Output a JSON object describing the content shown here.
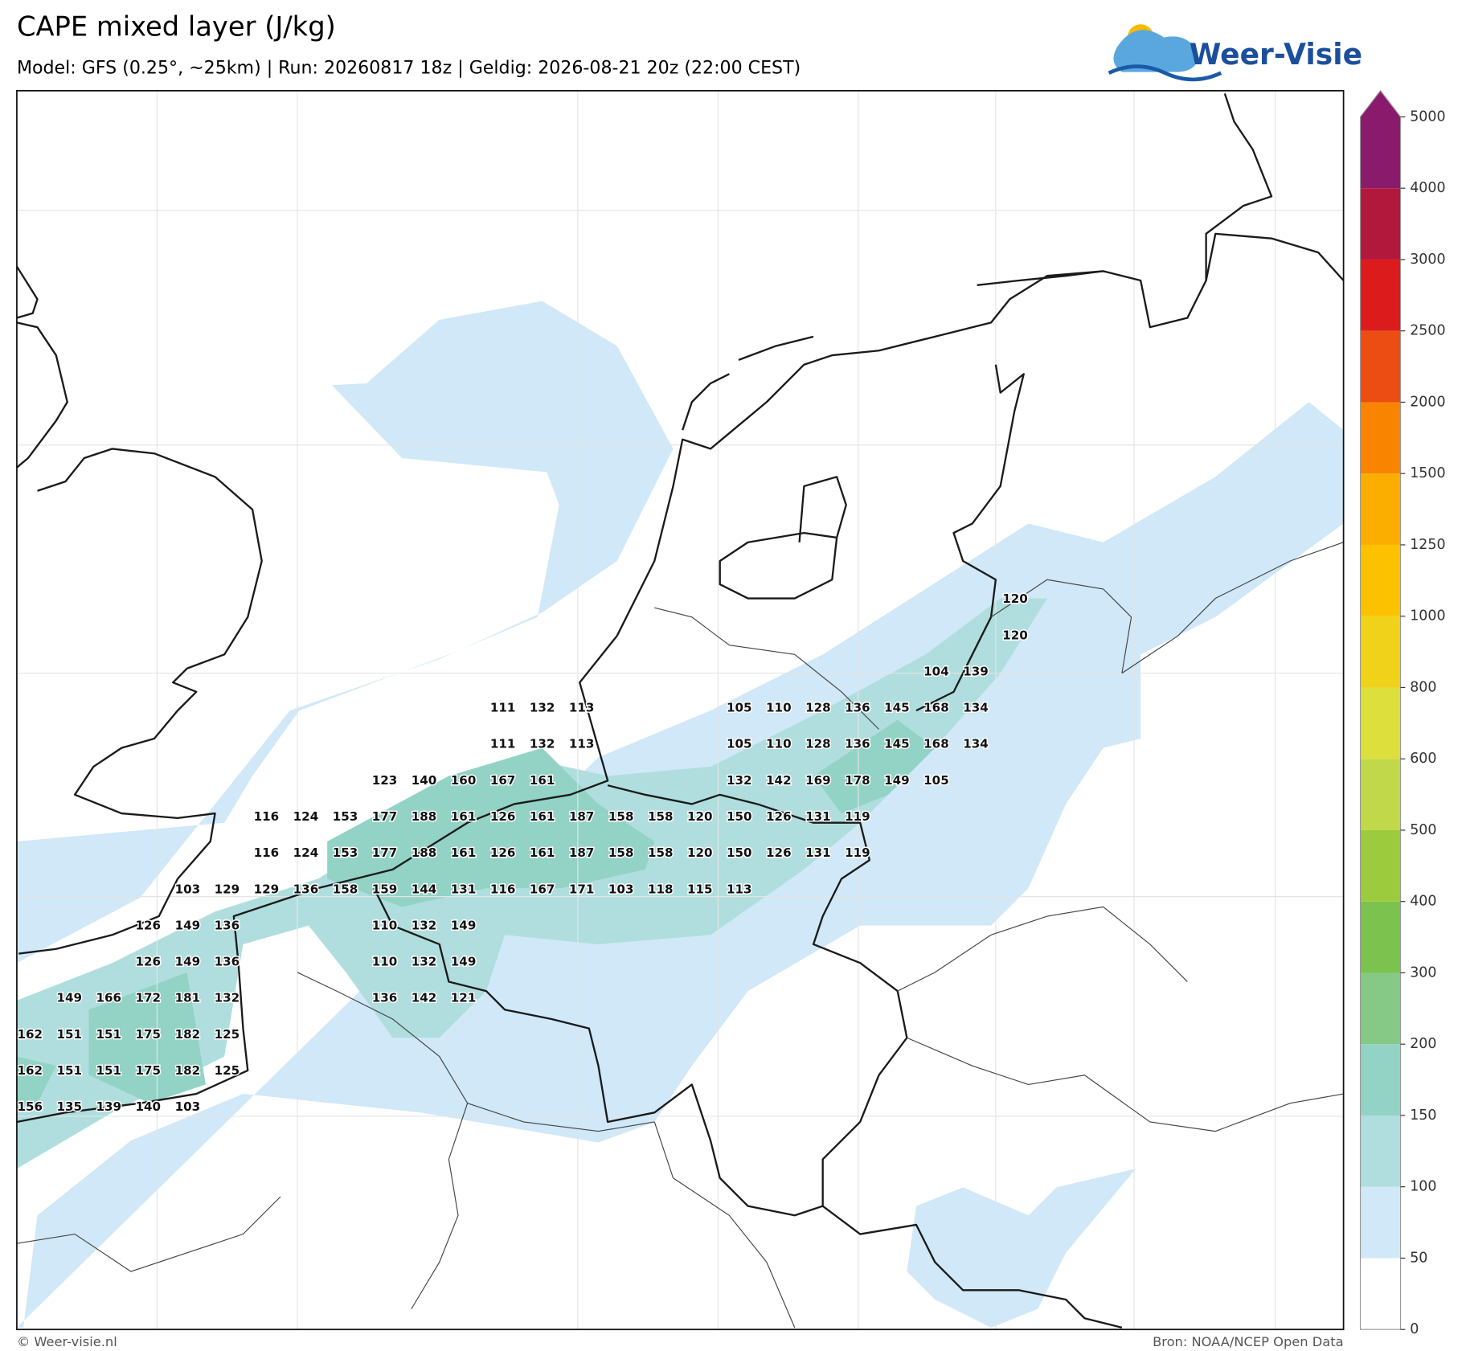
{
  "header": {
    "title": "CAPE mixed layer (J/kg)",
    "subtitle": "Model: GFS (0.25°, ~25km)  |  Run: 20260817 18z  |  Geldig: 2026-08-21 20z (22:00 CEST)",
    "logo": "Weer-Visie"
  },
  "map": {
    "labels": [
      [
        null,
        null,
        null,
        null,
        null,
        null,
        null,
        null,
        null,
        null,
        null,
        null,
        null,
        null,
        null,
        null,
        null,
        null,
        null,
        null,
        null,
        null,
        null,
        null,
        null,
        120
      ],
      [
        null,
        null,
        null,
        null,
        null,
        null,
        null,
        null,
        null,
        null,
        null,
        null,
        null,
        null,
        null,
        null,
        null,
        null,
        null,
        null,
        null,
        null,
        null,
        null,
        null,
        120
      ],
      [
        null,
        null,
        null,
        null,
        null,
        null,
        null,
        null,
        null,
        null,
        null,
        null,
        null,
        null,
        null,
        null,
        null,
        null,
        null,
        null,
        null,
        null,
        null,
        104,
        139,
        null
      ],
      [
        null,
        null,
        null,
        null,
        null,
        null,
        null,
        null,
        null,
        null,
        null,
        null,
        111,
        132,
        113,
        null,
        null,
        null,
        105,
        110,
        128,
        136,
        145,
        168,
        134,
        null
      ],
      [
        null,
        null,
        null,
        null,
        null,
        null,
        null,
        null,
        null,
        null,
        null,
        null,
        111,
        132,
        113,
        null,
        null,
        null,
        105,
        110,
        128,
        136,
        145,
        168,
        134,
        null
      ],
      [
        null,
        null,
        null,
        null,
        null,
        null,
        null,
        null,
        null,
        123,
        140,
        160,
        167,
        161,
        null,
        null,
        null,
        null,
        132,
        142,
        169,
        178,
        149,
        105,
        null,
        null
      ],
      [
        null,
        null,
        null,
        null,
        null,
        null,
        116,
        124,
        153,
        177,
        188,
        161,
        126,
        161,
        187,
        158,
        158,
        120,
        150,
        126,
        131,
        119,
        null,
        null,
        null,
        null
      ],
      [
        null,
        null,
        null,
        null,
        null,
        null,
        116,
        124,
        153,
        177,
        188,
        161,
        126,
        161,
        187,
        158,
        158,
        120,
        150,
        126,
        131,
        119,
        null,
        null,
        null,
        null
      ],
      [
        null,
        null,
        null,
        null,
        103,
        129,
        129,
        136,
        158,
        159,
        144,
        131,
        116,
        167,
        171,
        103,
        118,
        115,
        113,
        null,
        null,
        null,
        null,
        null,
        null,
        null
      ],
      [
        null,
        null,
        null,
        126,
        149,
        136,
        null,
        null,
        null,
        110,
        132,
        149,
        null,
        null,
        null,
        null,
        null,
        null,
        null,
        null,
        null,
        null,
        null,
        null,
        null,
        null
      ],
      [
        null,
        null,
        null,
        126,
        149,
        136,
        null,
        null,
        null,
        110,
        132,
        149,
        null,
        null,
        null,
        null,
        null,
        null,
        null,
        null,
        null,
        null,
        null,
        null,
        null,
        null
      ],
      [
        null,
        149,
        166,
        172,
        181,
        132,
        null,
        null,
        null,
        136,
        142,
        121,
        null,
        null,
        null,
        null,
        null,
        null,
        null,
        null,
        null,
        null,
        null,
        null,
        null,
        null
      ],
      [
        162,
        151,
        151,
        175,
        182,
        125,
        null,
        null,
        null,
        null,
        null,
        null,
        null,
        null,
        null,
        null,
        null,
        null,
        null,
        null,
        null,
        null,
        null,
        null,
        null,
        null
      ],
      [
        162,
        151,
        151,
        175,
        182,
        125,
        null,
        null,
        null,
        null,
        null,
        null,
        null,
        null,
        null,
        null,
        null,
        null,
        null,
        null,
        null,
        null,
        null,
        null,
        null,
        null
      ],
      [
        156,
        135,
        139,
        140,
        103,
        null,
        null,
        null,
        null,
        null,
        null,
        null,
        null,
        null,
        null,
        null,
        null,
        null,
        null,
        null,
        null,
        null,
        null,
        null,
        null,
        null
      ]
    ]
  },
  "colorbar": {
    "ticks": [
      0,
      50,
      100,
      150,
      200,
      300,
      400,
      500,
      600,
      800,
      1000,
      1250,
      1500,
      2000,
      2500,
      3000,
      4000,
      5000
    ],
    "colors": [
      "#ffffff",
      "#d0e8f7",
      "#b0dede",
      "#92d3c6",
      "#86c986",
      "#7cc24e",
      "#9ccb3d",
      "#c0d84a",
      "#dde03c",
      "#f1d21a",
      "#fcc200",
      "#fbae00",
      "#f88400",
      "#ec4d13",
      "#dc1c1c",
      "#b2183b",
      "#8a1a6b"
    ]
  },
  "footer": {
    "left": "© Weer-visie.nl",
    "right": "Bron: NOAA/NCEP Open Data"
  }
}
